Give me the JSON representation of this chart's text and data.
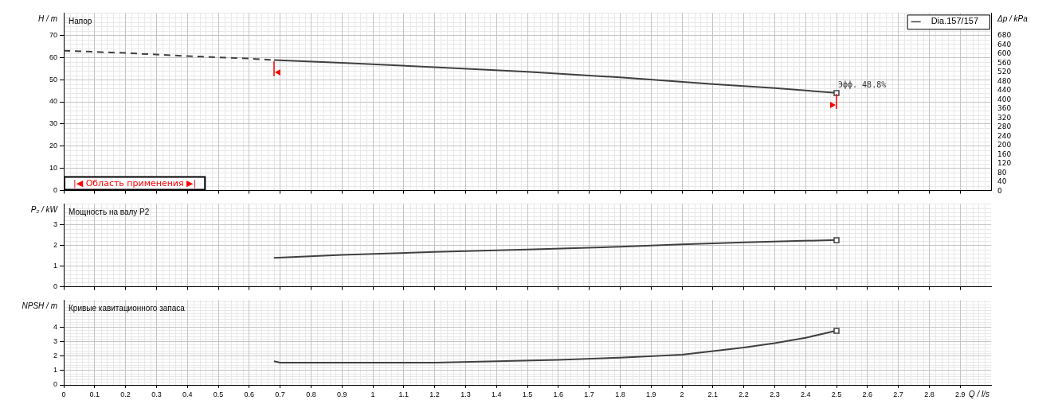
{
  "chart_data": [
    {
      "type": "line",
      "title": "Напор",
      "ylabel": "H / m",
      "y2label": "Δp / kPa",
      "xlim": [
        0,
        3
      ],
      "xticks": [
        0,
        0.1,
        0.2,
        0.3,
        0.4,
        0.5,
        0.6,
        0.7,
        0.8,
        0.9,
        1,
        1.1,
        1.2,
        1.3,
        1.4,
        1.5,
        1.6,
        1.7,
        1.8,
        1.9,
        2,
        2.1,
        2.2,
        2.3,
        2.4,
        2.5,
        2.6,
        2.7,
        2.8,
        2.9
      ],
      "ylim": [
        0,
        80
      ],
      "yticks": [
        0,
        10,
        20,
        30,
        40,
        50,
        60,
        70
      ],
      "y2lim": [
        0,
        777
      ],
      "y2ticks": [
        0,
        40,
        80,
        120,
        160,
        200,
        240,
        280,
        320,
        360,
        400,
        440,
        480,
        520,
        560,
        600,
        640,
        680
      ],
      "grid": true,
      "legend": "top right",
      "tick_labels": "y",
      "series": [
        {
          "type": "line",
          "line_style": "dashed",
          "color": "#404040",
          "x": [
            0,
            0.2,
            0.4,
            0.6,
            0.68
          ],
          "values": [
            63.0,
            62.0,
            60.6,
            59.5,
            58.8
          ]
        },
        {
          "type": "line",
          "name": "Dia.157/157",
          "color": "#404040",
          "x": [
            0.68,
            0.9,
            1.2,
            1.5,
            1.8,
            2.1,
            2.3,
            2.5
          ],
          "values": [
            58.8,
            57.6,
            55.6,
            53.5,
            51.0,
            48.0,
            46.2,
            44.0
          ]
        }
      ],
      "annotations": [
        {
          "text": "Эфф. 48.8%",
          "x": 2.5,
          "y": 44.0
        },
        "|◀ Область применения ▶|"
      ]
    },
    {
      "type": "line",
      "title": "Мощность на валу P2",
      "ylabel": "P₂ / kW",
      "xlim": [
        0,
        3
      ],
      "xticks": [
        0,
        0.1,
        0.2,
        0.3,
        0.4,
        0.5,
        0.6,
        0.7,
        0.8,
        0.9,
        1,
        1.1,
        1.2,
        1.3,
        1.4,
        1.5,
        1.6,
        1.7,
        1.8,
        1.9,
        2,
        2.1,
        2.2,
        2.3,
        2.4,
        2.5,
        2.6,
        2.7,
        2.8,
        2.9
      ],
      "ylim": [
        0,
        4
      ],
      "yticks": [
        0,
        1,
        2,
        3
      ],
      "grid": true,
      "tick_labels": "y",
      "series": [
        {
          "type": "line",
          "color": "#404040",
          "x": [
            0.68,
            0.9,
            1.2,
            1.5,
            1.8,
            2.0,
            2.2,
            2.5
          ],
          "values": [
            1.4,
            1.54,
            1.68,
            1.8,
            1.93,
            2.05,
            2.14,
            2.26
          ]
        }
      ]
    },
    {
      "type": "line",
      "title": "Кривые кавитационного запаса",
      "ylabel": "NPSH / m",
      "xlabel": "Q / l/s",
      "xlim": [
        0,
        3
      ],
      "xticks": [
        0,
        0.1,
        0.2,
        0.3,
        0.4,
        0.5,
        0.6,
        0.7,
        0.8,
        0.9,
        1,
        1.1,
        1.2,
        1.3,
        1.4,
        1.5,
        1.6,
        1.7,
        1.8,
        1.9,
        2,
        2.1,
        2.2,
        2.3,
        2.4,
        2.5,
        2.6,
        2.7,
        2.8,
        2.9
      ],
      "ylim": [
        0,
        5.9
      ],
      "yticks": [
        0,
        1,
        2,
        3,
        4
      ],
      "grid": true,
      "series": [
        {
          "type": "line",
          "color": "#404040",
          "x": [
            0.68,
            0.7,
            1.0,
            1.2,
            1.4,
            1.6,
            1.8,
            2.0,
            2.1,
            2.2,
            2.3,
            2.4,
            2.5
          ],
          "values": [
            1.65,
            1.55,
            1.55,
            1.55,
            1.65,
            1.75,
            1.9,
            2.1,
            2.35,
            2.6,
            2.9,
            3.28,
            3.78
          ]
        }
      ]
    }
  ]
}
